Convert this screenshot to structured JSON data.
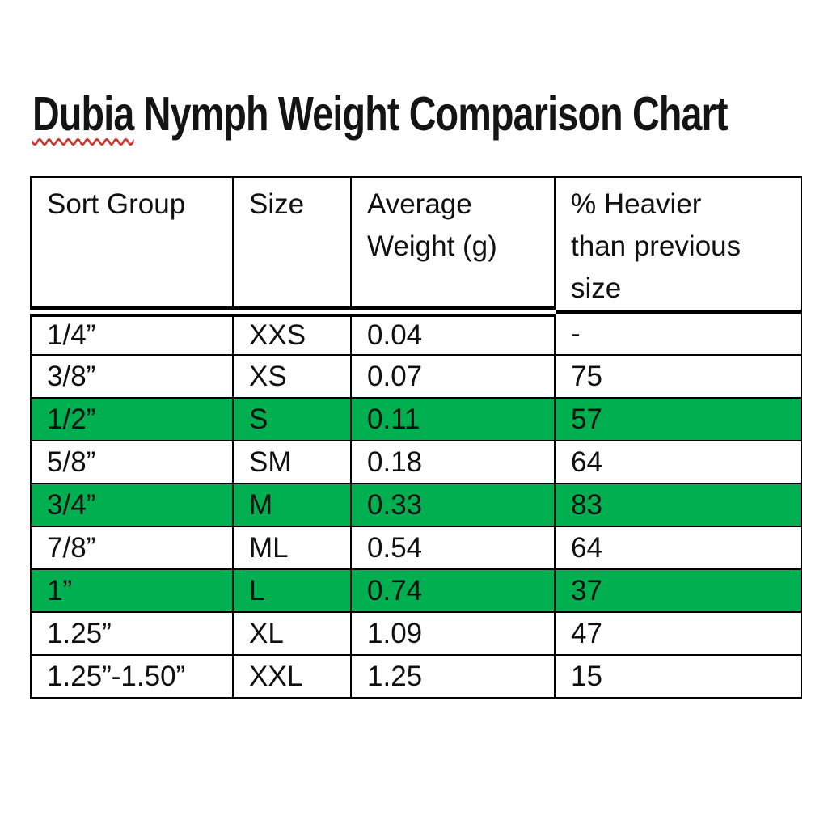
{
  "colors": {
    "highlight": "#00b050",
    "border": "#000000",
    "squiggle": "#d0342c",
    "page-bg": "#ffffff"
  },
  "title": {
    "misspelled_word": "Dubia",
    "rest": " Nymph Weight Comparison Chart"
  },
  "table": {
    "columns": [
      {
        "label": "Sort Group",
        "lines": [
          "Sort Group"
        ]
      },
      {
        "label": "Size",
        "lines": [
          "Size"
        ]
      },
      {
        "label": "Average Weight (g)",
        "lines": [
          "Average",
          "Weight (g)"
        ]
      },
      {
        "label": "% Heavier than previous size",
        "lines": [
          "% Heavier",
          "than previous",
          "size"
        ]
      }
    ],
    "rows": [
      {
        "sort_group": "1/4”",
        "size": "XXS",
        "avg_weight": "0.04",
        "pct_heavier": "-",
        "highlighted": false
      },
      {
        "sort_group": "3/8”",
        "size": "XS",
        "avg_weight": "0.07",
        "pct_heavier": "75",
        "highlighted": false
      },
      {
        "sort_group": "1/2”",
        "size": "S",
        "avg_weight": "0.11",
        "pct_heavier": "57",
        "highlighted": true
      },
      {
        "sort_group": "5/8”",
        "size": "SM",
        "avg_weight": "0.18",
        "pct_heavier": "64",
        "highlighted": false
      },
      {
        "sort_group": "3/4”",
        "size": "M",
        "avg_weight": "0.33",
        "pct_heavier": "83",
        "highlighted": true
      },
      {
        "sort_group": "7/8”",
        "size": "ML",
        "avg_weight": "0.54",
        "pct_heavier": "64",
        "highlighted": false
      },
      {
        "sort_group": "1”",
        "size": "L",
        "avg_weight": "0.74",
        "pct_heavier": "37",
        "highlighted": true
      },
      {
        "sort_group": "1.25”",
        "size": "XL",
        "avg_weight": "1.09",
        "pct_heavier": "47",
        "highlighted": false
      },
      {
        "sort_group": "1.25”-1.50”",
        "size": "XXL",
        "avg_weight": "1.25",
        "pct_heavier": "15",
        "highlighted": false
      }
    ]
  }
}
